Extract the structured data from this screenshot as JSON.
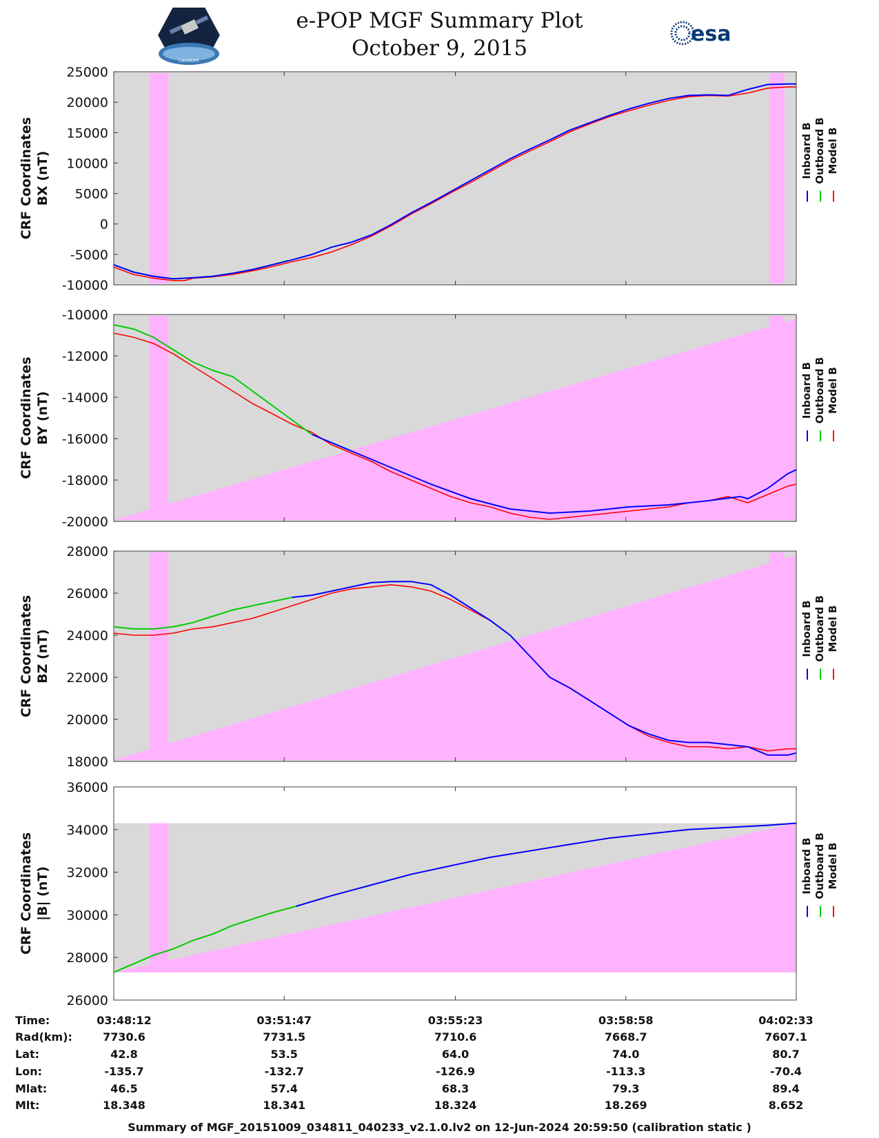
{
  "header": {
    "title_line1": "e-POP MGF Summary Plot",
    "title_line2": "October 9, 2015",
    "logo_left_text": "CASSIOPE",
    "logo_right_text": "esa"
  },
  "legend": {
    "inboard": "Inboard B",
    "outboard": "Outboard B",
    "model": "Model B"
  },
  "colors": {
    "inboard": "#0000ff",
    "outboard": "#00cc00",
    "model": "#ff0000",
    "bg_gray": "#d9d9d9",
    "bg_pink": "#ffb3ff"
  },
  "chart_data": [
    {
      "type": "line",
      "ylabel_line1": "CRF Coordinates",
      "ylabel_line2": "BX (nT)",
      "ylim": [
        -10000,
        25000
      ],
      "yticks": [
        -10000,
        -5000,
        0,
        5000,
        10000,
        15000,
        20000,
        25000
      ],
      "xlim": [
        0,
        861
      ],
      "x_ticks_sec": [
        0,
        215,
        431,
        646,
        861
      ],
      "series": [
        {
          "name": "Inboard B",
          "x": [
            0,
            25,
            50,
            75,
            100,
            125,
            150,
            175,
            200,
            225,
            250,
            275,
            300,
            325,
            350,
            375,
            400,
            425,
            450,
            475,
            500,
            525,
            550,
            575,
            600,
            625,
            650,
            675,
            700,
            725,
            750,
            775,
            800,
            825,
            850,
            861
          ],
          "values": [
            -6700,
            -7900,
            -8600,
            -9000,
            -8850,
            -8600,
            -8100,
            -7500,
            -6700,
            -5900,
            -5000,
            -3800,
            -3000,
            -1800,
            -100,
            1800,
            3500,
            5300,
            7100,
            8900,
            10700,
            12300,
            13800,
            15400,
            16600,
            17800,
            18900,
            19800,
            20600,
            21100,
            21200,
            21100,
            22100,
            22900,
            23000,
            23000
          ]
        },
        {
          "name": "Outboard B",
          "x": [
            0,
            25,
            50,
            75,
            100,
            125,
            150,
            175,
            200,
            220
          ],
          "values": [
            -6700,
            -7900,
            -8600,
            -9000,
            -8850,
            -8600,
            -8100,
            -7500,
            -6700,
            -6000
          ]
        },
        {
          "name": "Model B",
          "x": [
            0,
            25,
            50,
            75,
            90,
            100,
            125,
            150,
            175,
            200,
            225,
            250,
            275,
            300,
            325,
            350,
            375,
            400,
            425,
            450,
            475,
            500,
            525,
            550,
            575,
            600,
            625,
            650,
            675,
            700,
            725,
            750,
            775,
            800,
            825,
            850,
            861
          ],
          "values": [
            -7100,
            -8300,
            -8900,
            -9300,
            -9300,
            -8900,
            -8700,
            -8300,
            -7700,
            -7000,
            -6200,
            -5500,
            -4600,
            -3400,
            -2000,
            -300,
            1600,
            3300,
            5100,
            6800,
            8600,
            10400,
            12000,
            13500,
            15100,
            16400,
            17600,
            18600,
            19500,
            20300,
            20900,
            21100,
            21000,
            21500,
            22300,
            22500,
            22500
          ]
        }
      ],
      "pink_regions": [
        [
          45,
          69
        ],
        [
          827,
          846
        ]
      ]
    },
    {
      "type": "line",
      "ylabel_line1": "CRF Coordinates",
      "ylabel_line2": "BY (nT)",
      "ylim": [
        -20000,
        -10000
      ],
      "yticks": [
        -20000,
        -18000,
        -16000,
        -14000,
        -12000,
        -10000
      ],
      "xlim": [
        0,
        861
      ],
      "series": [
        {
          "name": "Inboard B",
          "x": [
            250,
            300,
            350,
            400,
            450,
            500,
            550,
            600,
            650,
            700,
            750,
            790,
            800,
            810,
            825,
            850,
            861
          ],
          "values": [
            -15800,
            -16600,
            -17400,
            -18200,
            -18900,
            -19400,
            -19600,
            -19500,
            -19300,
            -19200,
            -19000,
            -18800,
            -18900,
            -18700,
            -18400,
            -17700,
            -17500
          ]
        },
        {
          "name": "Outboard B",
          "x": [
            0,
            25,
            50,
            75,
            100,
            125,
            150,
            175,
            200,
            225,
            250
          ],
          "values": [
            -10500,
            -10700,
            -11100,
            -11700,
            -12300,
            -12700,
            -13000,
            -13700,
            -14400,
            -15100,
            -15800
          ]
        },
        {
          "name": "Model B",
          "x": [
            0,
            25,
            50,
            75,
            100,
            125,
            150,
            175,
            200,
            225,
            250,
            275,
            300,
            325,
            350,
            375,
            400,
            425,
            450,
            475,
            500,
            525,
            550,
            575,
            600,
            625,
            650,
            675,
            700,
            725,
            750,
            775,
            800,
            825,
            850,
            861
          ],
          "values": [
            -10900,
            -11100,
            -11400,
            -11900,
            -12500,
            -13100,
            -13700,
            -14300,
            -14800,
            -15300,
            -15700,
            -16300,
            -16700,
            -17100,
            -17600,
            -18000,
            -18400,
            -18800,
            -19100,
            -19300,
            -19600,
            -19800,
            -19900,
            -19800,
            -19700,
            -19600,
            -19500,
            -19400,
            -19300,
            -19100,
            -19000,
            -18800,
            -19100,
            -18700,
            -18300,
            -18200
          ]
        }
      ],
      "pink_regions": [
        [
          45,
          69
        ],
        [
          827,
          846
        ]
      ]
    },
    {
      "type": "line",
      "ylabel_line1": "CRF Coordinates",
      "ylabel_line2": "BZ (nT)",
      "ylim": [
        18000,
        28000
      ],
      "yticks": [
        18000,
        20000,
        22000,
        24000,
        26000,
        28000
      ],
      "xlim": [
        0,
        861
      ],
      "series": [
        {
          "name": "Inboard B",
          "x": [
            225,
            250,
            275,
            300,
            325,
            350,
            375,
            400,
            425,
            450,
            475,
            500,
            525,
            550,
            575,
            600,
            625,
            650,
            675,
            700,
            725,
            750,
            775,
            800,
            825,
            850,
            861
          ],
          "values": [
            25800,
            25900,
            26100,
            26300,
            26500,
            26550,
            26550,
            26400,
            25900,
            25300,
            24700,
            24000,
            23000,
            22000,
            21500,
            20900,
            20300,
            19700,
            19300,
            19000,
            18900,
            18900,
            18800,
            18700,
            18300,
            18300,
            18400
          ]
        },
        {
          "name": "Outboard B",
          "x": [
            0,
            25,
            50,
            75,
            100,
            125,
            150,
            175,
            200,
            225
          ],
          "values": [
            24400,
            24300,
            24300,
            24400,
            24600,
            24900,
            25200,
            25400,
            25600,
            25800
          ]
        },
        {
          "name": "Model B",
          "x": [
            0,
            25,
            50,
            75,
            100,
            125,
            150,
            175,
            200,
            225,
            250,
            275,
            300,
            325,
            350,
            375,
            400,
            425,
            450,
            475,
            500,
            525,
            550,
            575,
            600,
            625,
            650,
            675,
            700,
            725,
            750,
            775,
            800,
            825,
            850,
            861
          ],
          "values": [
            24100,
            24000,
            24000,
            24100,
            24300,
            24400,
            24600,
            24800,
            25100,
            25400,
            25700,
            26000,
            26200,
            26300,
            26400,
            26300,
            26100,
            25700,
            25200,
            24700,
            24000,
            23000,
            22000,
            21500,
            20900,
            20300,
            19700,
            19200,
            18900,
            18700,
            18700,
            18600,
            18700,
            18500,
            18600,
            18600
          ]
        }
      ],
      "pink_regions": [
        [
          45,
          69
        ],
        [
          827,
          846
        ]
      ]
    },
    {
      "type": "line",
      "ylabel_line1": "CRF Coordinates",
      "ylabel_line2": "|B| (nT)",
      "ylim": [
        26000,
        36000
      ],
      "yticks": [
        26000,
        28000,
        30000,
        32000,
        34000,
        36000
      ],
      "xlim": [
        0,
        861
      ],
      "series": [
        {
          "name": "Inboard B",
          "x": [
            230,
            275,
            325,
            375,
            425,
            475,
            525,
            575,
            625,
            675,
            725,
            775,
            825,
            861
          ],
          "values": [
            30400,
            30900,
            31400,
            31900,
            32300,
            32700,
            33000,
            33300,
            33600,
            33800,
            34000,
            34100,
            34200,
            34300
          ]
        },
        {
          "name": "Outboard B",
          "x": [
            0,
            25,
            50,
            75,
            100,
            125,
            150,
            175,
            200,
            230
          ],
          "values": [
            27300,
            27700,
            28100,
            28400,
            28800,
            29100,
            29500,
            29800,
            30100,
            30400
          ]
        },
        {
          "name": "Model B",
          "x": [
            0,
            25,
            50,
            75,
            100,
            125,
            150,
            175,
            200,
            230,
            275,
            325,
            375,
            425,
            475,
            525,
            575,
            625,
            675,
            725,
            775,
            825,
            861
          ],
          "values": [
            27300,
            27700,
            28100,
            28400,
            28800,
            29100,
            29500,
            29800,
            30100,
            30400,
            30900,
            31400,
            31900,
            32300,
            32700,
            33000,
            33300,
            33600,
            33800,
            34000,
            34100,
            34200,
            34300
          ]
        }
      ],
      "pink_regions": [
        [
          45,
          69
        ]
      ]
    }
  ],
  "table": {
    "row_labels": [
      "Time:",
      "Rad(km):",
      "Lat:",
      "Lon:",
      "Mlat:",
      "Mlt:"
    ],
    "columns": [
      [
        "03:48:12",
        "7730.6",
        "42.8",
        "-135.7",
        "46.5",
        "18.348"
      ],
      [
        "03:51:47",
        "7731.5",
        "53.5",
        "-132.7",
        "57.4",
        "18.341"
      ],
      [
        "03:55:23",
        "7710.6",
        "64.0",
        "-126.9",
        "68.3",
        "18.324"
      ],
      [
        "03:58:58",
        "7668.7",
        "74.0",
        "-113.3",
        "79.3",
        "18.269"
      ],
      [
        "04:02:33",
        "7607.1",
        "80.7",
        "-70.4",
        "89.4",
        "8.652"
      ]
    ]
  },
  "footer": "Summary of MGF_20151009_034811_040233_v2.1.0.lv2 on 12-Jun-2024 20:59:50 (calibration static )"
}
